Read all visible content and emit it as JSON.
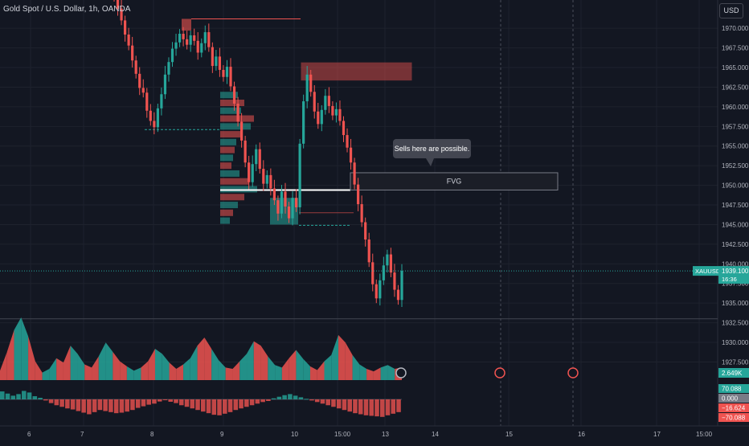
{
  "header": {
    "title": "Gold Spot / U.S. Dollar, 1h, OANDA",
    "currency": "USD"
  },
  "colors": {
    "background": "#131722",
    "bull": "#26a69a",
    "bear": "#ef5350",
    "grid": "#1e222d",
    "axis_text": "#b2b5be"
  },
  "chart_data": [
    {
      "type": "candlestick",
      "title": "Gold Spot / U.S. Dollar, 1h, OANDA",
      "ylim": [
        1925.5,
        1973.6
      ],
      "y_ticks": [
        "1970.000",
        "1967.500",
        "1965.000",
        "1962.500",
        "1960.000",
        "1957.500",
        "1955.000",
        "1952.500",
        "1950.000",
        "1947.500",
        "1945.000",
        "1942.500",
        "1940.000",
        "1937.500",
        "1935.000",
        "1932.500",
        "1930.000",
        "1927.500"
      ],
      "x_ticks": [
        "6",
        "7",
        "8",
        "9",
        "10",
        "15:00",
        "13",
        "14",
        "15",
        "16",
        "17",
        "15:00"
      ],
      "current_price": {
        "symbol": "XAUUSD",
        "price": "1939.100",
        "countdown": "16:36",
        "value": 1939.1
      },
      "candle_closes": [
        1974,
        1972.5,
        1971,
        1969.2,
        1967.8,
        1965.9,
        1964.2,
        1962.4,
        1961.8,
        1959.5,
        1958.2,
        1957.4,
        1959.8,
        1961.6,
        1964.1,
        1965.7,
        1967.4,
        1968.2,
        1969.3,
        1968.6,
        1967.9,
        1969.1,
        1968.4,
        1966.9,
        1968.1,
        1969.5,
        1967.6,
        1965.2,
        1966.4,
        1964.7,
        1963.8,
        1965.1,
        1962.6,
        1960.4,
        1958.1,
        1955.7,
        1952.9,
        1950.4,
        1952.7,
        1954.6,
        1952.1,
        1950.2,
        1951.3,
        1949.6,
        1948.1,
        1946.4,
        1949.2,
        1947.3,
        1945.8,
        1948.4,
        1947.2,
        1955.3,
        1960.7,
        1964.1,
        1961.9,
        1959.4,
        1957.8,
        1959.6,
        1961.4,
        1960.1,
        1958.9,
        1959.7,
        1958.2,
        1956.4,
        1954.8,
        1952.9,
        1950.1,
        1947.6,
        1945.3,
        1943.1,
        1940.2,
        1937.4,
        1935.6,
        1937.9,
        1939.8,
        1941.2,
        1938.9,
        1936.7,
        1935.4,
        1939.1
      ],
      "annotations": [
        "FVG",
        "Sells here are possible."
      ],
      "volume_profile": "visible"
    },
    {
      "type": "area",
      "pane": "volume",
      "last_value_label": "2.649K",
      "values": [
        0.15,
        0.45,
        0.8,
        1.0,
        0.7,
        0.3,
        0.12,
        0.18,
        0.35,
        0.28,
        0.55,
        0.42,
        0.25,
        0.2,
        0.38,
        0.6,
        0.45,
        0.3,
        0.22,
        0.15,
        0.2,
        0.3,
        0.5,
        0.42,
        0.28,
        0.18,
        0.25,
        0.35,
        0.55,
        0.68,
        0.5,
        0.32,
        0.2,
        0.18,
        0.3,
        0.42,
        0.62,
        0.55,
        0.38,
        0.24,
        0.2,
        0.35,
        0.48,
        0.34,
        0.22,
        0.16,
        0.3,
        0.4,
        0.72,
        0.6,
        0.4,
        0.25,
        0.18,
        0.14,
        0.2,
        0.24,
        0.18,
        0.2
      ]
    },
    {
      "type": "bar",
      "pane": "oscillator",
      "level_labels": [
        "70.088",
        "0.000",
        "−16.624",
        "−70.088"
      ],
      "values": [
        30,
        22,
        14,
        20,
        32,
        26,
        12,
        6,
        -4,
        -14,
        -22,
        -28,
        -34,
        -38,
        -44,
        -50,
        -56,
        -48,
        -40,
        -44,
        -48,
        -52,
        -50,
        -46,
        -40,
        -32,
        -26,
        -20,
        -16,
        -8,
        -3,
        -9,
        -14,
        -22,
        -28,
        -34,
        -40,
        -46,
        -52,
        -58,
        -60,
        -54,
        -48,
        -40,
        -34,
        -28,
        -22,
        -16,
        -10,
        -6,
        4,
        10,
        16,
        20,
        14,
        8,
        2,
        -4,
        -10,
        -16,
        -22,
        -28,
        -34,
        -40,
        -46,
        -52,
        -56,
        -60,
        -62,
        -64,
        -66,
        -60,
        -54,
        -48
      ]
    }
  ]
}
